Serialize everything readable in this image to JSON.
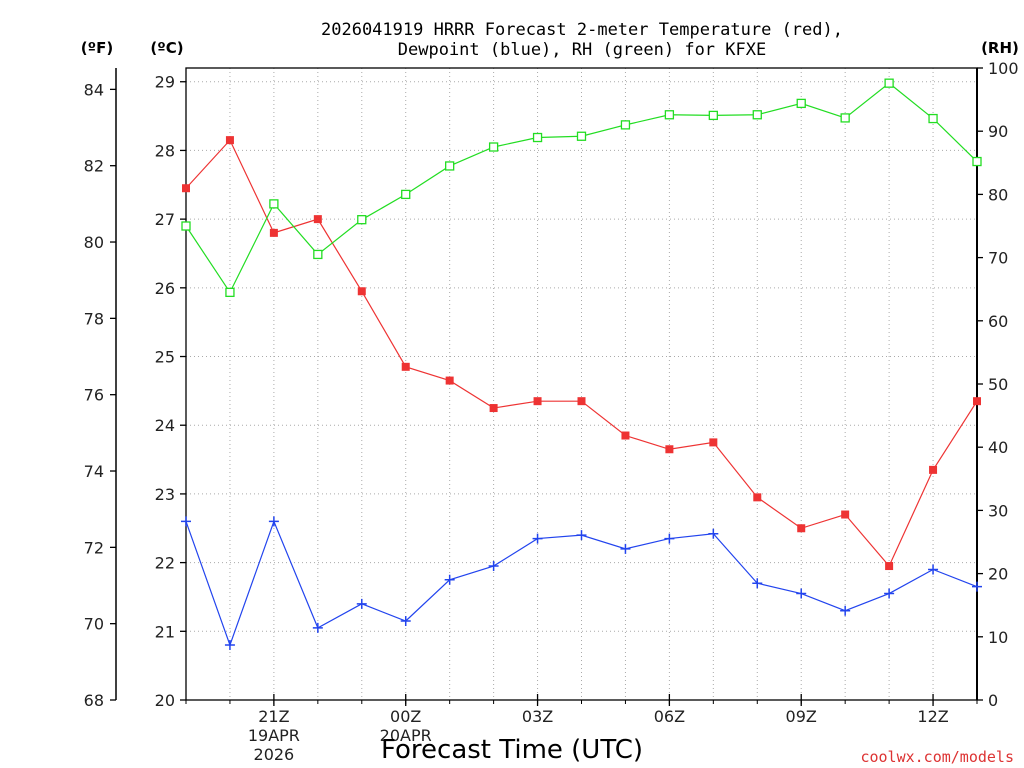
{
  "chart_data": {
    "type": "line",
    "title_lines": [
      "2026041919 HRRR Forecast 2-meter Temperature (red),",
      "Dewpoint (blue), RH (green) for KFXE"
    ],
    "xlabel": "Forecast Time (UTC)",
    "credit": "coolwx.com/models",
    "x_hours": [
      19,
      20,
      21,
      22,
      23,
      24,
      25,
      26,
      27,
      28,
      29,
      30,
      31,
      32,
      33,
      34,
      35,
      36,
      37
    ],
    "x_ticks": [
      {
        "hour": 21,
        "lines": [
          "21Z",
          "19APR",
          "2026"
        ]
      },
      {
        "hour": 24,
        "lines": [
          "00Z",
          "20APR"
        ]
      },
      {
        "hour": 27,
        "lines": [
          "03Z"
        ]
      },
      {
        "hour": 30,
        "lines": [
          "06Z"
        ]
      },
      {
        "hour": 33,
        "lines": [
          "09Z"
        ]
      },
      {
        "hour": 36,
        "lines": [
          "12Z"
        ]
      }
    ],
    "left_axis_c": {
      "label": "(ºC)",
      "min": 20,
      "max": 29.2,
      "ticks": [
        20,
        21,
        22,
        23,
        24,
        25,
        26,
        27,
        28,
        29
      ]
    },
    "left_axis_f": {
      "label": "(ºF)",
      "ticks": [
        68,
        70,
        72,
        74,
        76,
        78,
        80,
        82,
        84
      ]
    },
    "right_axis_rh": {
      "label": "(RH)",
      "min": 0,
      "max": 100,
      "ticks": [
        0,
        10,
        20,
        30,
        40,
        50,
        60,
        70,
        80,
        90,
        100
      ]
    },
    "series": [
      {
        "name": "2-meter Temperature",
        "color": "#ee3333",
        "marker": "filled-square",
        "axis": "C",
        "values": [
          27.45,
          28.15,
          26.8,
          27.0,
          25.95,
          24.85,
          24.65,
          24.25,
          24.35,
          24.35,
          23.85,
          23.65,
          23.75,
          22.95,
          22.5,
          22.7,
          21.95,
          23.35,
          24.35
        ]
      },
      {
        "name": "Dewpoint",
        "color": "#2244ee",
        "marker": "plus",
        "axis": "C",
        "values": [
          22.6,
          20.8,
          22.6,
          21.05,
          21.4,
          21.15,
          21.75,
          21.95,
          22.35,
          22.4,
          22.2,
          22.35,
          22.42,
          21.7,
          21.55,
          21.3,
          21.55,
          21.9,
          21.65
        ]
      },
      {
        "name": "RH",
        "color": "#22dd22",
        "marker": "open-square",
        "axis": "RH",
        "values": [
          75,
          64.5,
          78.5,
          70.5,
          76,
          80,
          84.5,
          87.5,
          89,
          89.2,
          91,
          92.6,
          92.5,
          92.6,
          94.4,
          92.1,
          97.6,
          92,
          85.2
        ]
      }
    ]
  }
}
